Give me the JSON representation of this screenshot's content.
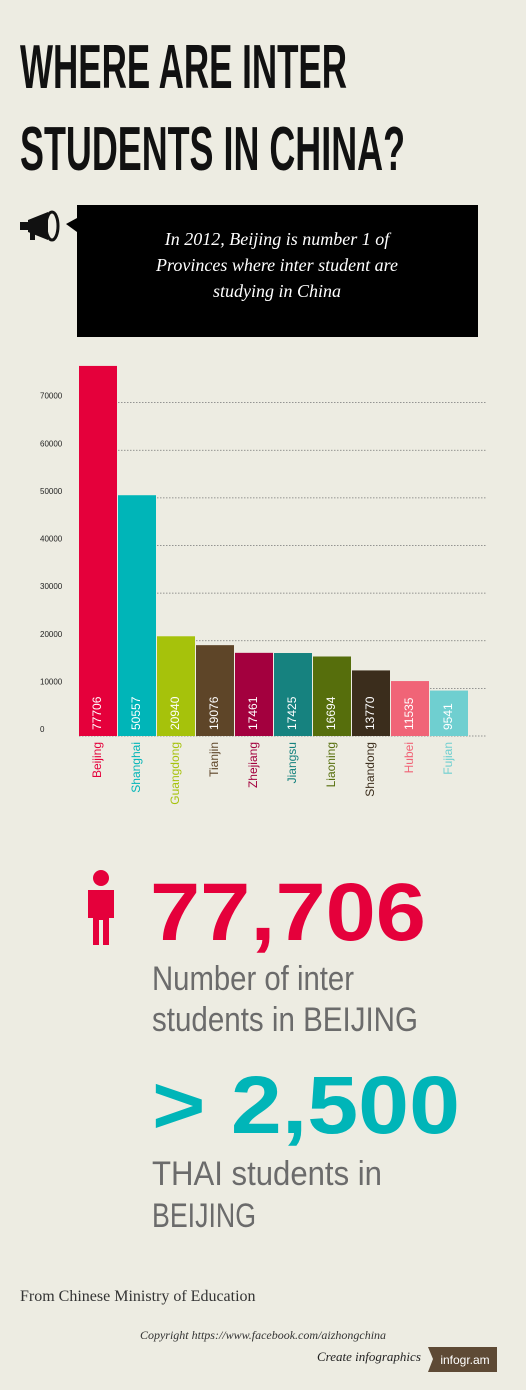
{
  "title": [
    "WHERE ARE INTER",
    "STUDENTS IN CHINA?"
  ],
  "callout": [
    "In 2012, Beijing is number 1 of",
    "Provinces where inter student are",
    "studying in China"
  ],
  "chart_data": {
    "type": "bar",
    "categories": [
      "Beijing",
      "Shanghai",
      "Guangdong",
      "Tianjin",
      "Zhejiang",
      "Jiangsu",
      "Liaoning",
      "Shandong",
      "Hubei",
      "Fujian"
    ],
    "values": [
      77706,
      50557,
      20940,
      19076,
      17461,
      17425,
      16694,
      13770,
      11535,
      9541
    ],
    "colors": [
      "#e5003b",
      "#00b5b8",
      "#a6c20b",
      "#5e4528",
      "#a3003e",
      "#16827f",
      "#566e0c",
      "#3b2d1c",
      "#f06477",
      "#6fcfd0"
    ],
    "ylim": [
      0,
      80000
    ],
    "yticks": [
      0,
      10000,
      20000,
      30000,
      40000,
      50000,
      60000,
      70000
    ],
    "grid": true
  },
  "stats": [
    {
      "value": "77,706",
      "label": [
        "Number of inter",
        "students in BEIJING"
      ]
    },
    {
      "value": "> 2,500",
      "label": [
        "THAI students in",
        "BEIJING"
      ]
    }
  ],
  "source": "From Chinese Ministry of Education",
  "copyright": "Copyright https://www.facebook.com/aizhongchina",
  "footer": {
    "text": "Create infographics",
    "brand": "infogr.am"
  }
}
